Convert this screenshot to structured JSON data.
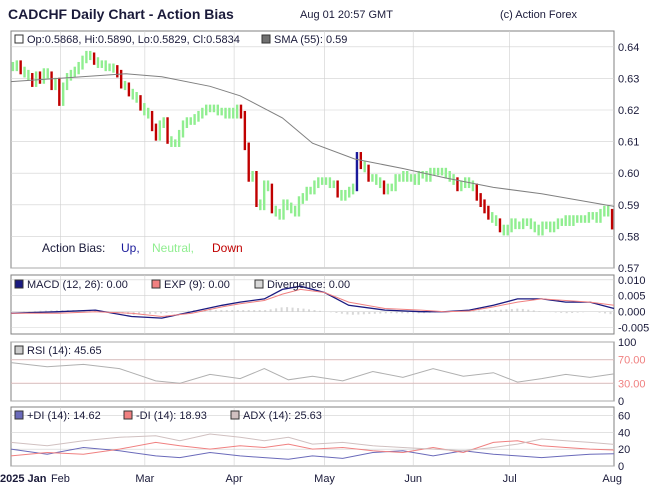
{
  "header": {
    "title": "CADCHF Daily Chart - Action Bias",
    "timestamp": "Aug 01 20:57 GMT",
    "copyright": "(c) Action Forex"
  },
  "colors": {
    "up": "#1a1a9a",
    "neutral": "#90ee90",
    "down": "#c00000",
    "sma": "#808080",
    "macd": "#1a1a80",
    "exp": "#f08080",
    "divergence": "#d8d8d8",
    "rsi": "#b0b0b0",
    "rsi_lines": "#f08080",
    "plus_di": "#6a6aba",
    "minus_di": "#f08080",
    "adx": "#d0c0c0",
    "grid": "#d0d0d0",
    "frame": "#808080"
  },
  "main_panel": {
    "ohlc_legend": "Op:0.5868, Hi:0.5890, Lo:0.5829, Cl:0.5834",
    "sma_legend": "SMA (55): 0.59",
    "bias_label": "Action Bias:",
    "bias_up": "Up,",
    "bias_neutral": "Neutral,",
    "bias_down": "Down"
  },
  "macd_panel": {
    "macd_legend": "MACD (12, 26): 0.00",
    "exp_legend": "EXP (9): 0.00",
    "div_legend": "Divergence: 0.00"
  },
  "rsi_panel": {
    "legend": "RSI (14): 45.65"
  },
  "dmi_panel": {
    "plus_legend": "+DI (14): 14.62",
    "minus_legend": "-DI (14): 18.93",
    "adx_legend": "ADX (14): 25.63"
  },
  "x_axis_labels": [
    "2025 Jan",
    "Feb",
    "Mar",
    "Apr",
    "May",
    "Jun",
    "Jul",
    "Aug"
  ],
  "chart_data": [
    {
      "type": "ohlc",
      "title": "CADCHF Daily Chart - Action Bias",
      "ylim": [
        0.57,
        0.645
      ],
      "y_ticks": [
        "0.64",
        "0.63",
        "0.62",
        "0.61",
        "0.60",
        "0.59",
        "0.58",
        "0.57"
      ],
      "series": [
        {
          "name": "Price",
          "closes": [
            0.6335,
            0.6345,
            0.6325,
            0.6315,
            0.6305,
            0.6285,
            0.631,
            0.6295,
            0.632,
            0.631,
            0.6275,
            0.629,
            0.6225,
            0.6275,
            0.6305,
            0.6315,
            0.6325,
            0.634,
            0.636,
            0.6375,
            0.637,
            0.6355,
            0.6345,
            0.6345,
            0.6335,
            0.6335,
            0.633,
            0.6315,
            0.628,
            0.6275,
            0.6255,
            0.6245,
            0.6235,
            0.621,
            0.6195,
            0.6185,
            0.6145,
            0.6115,
            0.6155,
            0.6165,
            0.6105,
            0.6095,
            0.6095,
            0.6125,
            0.6155,
            0.6165,
            0.6165,
            0.6175,
            0.6185,
            0.6195,
            0.6205,
            0.6205,
            0.6205,
            0.6195,
            0.6195,
            0.6185,
            0.6195,
            0.6185,
            0.6205,
            0.6185,
            0.6085,
            0.5985,
            0.5995,
            0.5905,
            0.5895,
            0.5965,
            0.5955,
            0.5885,
            0.5875,
            0.5865,
            0.5905,
            0.5895,
            0.5885,
            0.5875,
            0.5915,
            0.5925,
            0.5945,
            0.5945,
            0.5965,
            0.5975,
            0.5975,
            0.5975,
            0.5965,
            0.5965,
            0.5935,
            0.5925,
            0.5935,
            0.5945,
            0.5955,
            0.6055,
            0.6025,
            0.6015,
            0.5985,
            0.5985,
            0.5975,
            0.5965,
            0.5945,
            0.5955,
            0.5955,
            0.5985,
            0.5985,
            0.5995,
            0.5985,
            0.5985,
            0.5975,
            0.5995,
            0.5995,
            0.5985,
            0.6005,
            0.6005,
            0.6005,
            0.6005,
            0.5995,
            0.5985,
            0.5975,
            0.5955,
            0.5965,
            0.5975,
            0.5965,
            0.5955,
            0.5925,
            0.5905,
            0.5885,
            0.5865,
            0.5855,
            0.5845,
            0.5825,
            0.5815,
            0.5825,
            0.5845,
            0.5835,
            0.5835,
            0.5845,
            0.5845,
            0.5835,
            0.5825,
            0.5815,
            0.5835,
            0.5835,
            0.5825,
            0.5835,
            0.5845,
            0.5845,
            0.5855,
            0.5845,
            0.5855,
            0.5855,
            0.5855,
            0.5855,
            0.5865,
            0.5865,
            0.5855,
            0.5875,
            0.5885,
            0.5875,
            0.5834
          ]
        },
        {
          "name": "SMA (55)",
          "x_frac": [
            0,
            0.19,
            0.25,
            0.33,
            0.38,
            0.45,
            0.5,
            0.57,
            0.65,
            0.72,
            0.8,
            0.88,
            1
          ],
          "values": [
            0.629,
            0.6315,
            0.6305,
            0.6275,
            0.6245,
            0.6175,
            0.6095,
            0.6045,
            0.6015,
            0.5985,
            0.5955,
            0.5935,
            0.5895
          ]
        }
      ]
    },
    {
      "type": "line",
      "title": "MACD",
      "ylim": [
        -0.007,
        0.0115
      ],
      "y_ticks": [
        "0.010",
        "0.005",
        "0.000",
        "-0.005"
      ],
      "x_frac": [
        0,
        0.08,
        0.14,
        0.2,
        0.25,
        0.3,
        0.35,
        0.38,
        0.42,
        0.45,
        0.48,
        0.52,
        0.56,
        0.62,
        0.68,
        0.72,
        0.76,
        0.8,
        0.84,
        0.88,
        0.92,
        0.96,
        1
      ],
      "series": [
        {
          "name": "MACD (12, 26)",
          "values": [
            -0.0005,
            0,
            0.0005,
            -0.0015,
            -0.002,
            0,
            0.002,
            0.003,
            0.004,
            0.007,
            0.008,
            0.006,
            0.002,
            0.0005,
            0,
            0,
            0.0005,
            0.002,
            0.004,
            0.004,
            0.003,
            0.003,
            0.001
          ]
        },
        {
          "name": "EXP (9)",
          "values": [
            -0.0005,
            -0.0005,
            0,
            -0.0005,
            -0.0015,
            -0.0005,
            0.0015,
            0.0025,
            0.0035,
            0.0055,
            0.007,
            0.006,
            0.003,
            0.001,
            0.0005,
            0,
            0.0002,
            0.0015,
            0.003,
            0.004,
            0.0035,
            0.003,
            0.002
          ]
        },
        {
          "name": "Divergence",
          "values": [
            0,
            0.0005,
            0.0005,
            -0.001,
            -0.0005,
            0.0005,
            0.0005,
            0.0005,
            0.0005,
            0.0015,
            0.001,
            0,
            -0.001,
            -0.0005,
            -0.0005,
            0,
            0.0003,
            0.0005,
            0.001,
            0,
            -0.0005,
            0,
            -0.001
          ]
        }
      ]
    },
    {
      "type": "line",
      "title": "RSI",
      "ylim": [
        0,
        100
      ],
      "y_ticks": [
        "100",
        "70.00",
        "30.00",
        "0"
      ],
      "x_frac": [
        0,
        0.06,
        0.12,
        0.18,
        0.24,
        0.28,
        0.33,
        0.38,
        0.42,
        0.46,
        0.5,
        0.55,
        0.6,
        0.65,
        0.7,
        0.75,
        0.8,
        0.84,
        0.88,
        0.92,
        0.96,
        1
      ],
      "series": [
        {
          "name": "RSI (14)",
          "values": [
            65,
            58,
            62,
            55,
            34,
            30,
            45,
            38,
            55,
            36,
            42,
            34,
            50,
            40,
            55,
            42,
            48,
            32,
            38,
            45,
            40,
            46
          ]
        }
      ]
    },
    {
      "type": "line",
      "title": "DMI",
      "ylim": [
        0,
        70
      ],
      "y_ticks": [
        "60",
        "40",
        "20",
        "0"
      ],
      "x_frac": [
        0,
        0.06,
        0.12,
        0.18,
        0.24,
        0.28,
        0.33,
        0.38,
        0.42,
        0.46,
        0.5,
        0.55,
        0.6,
        0.65,
        0.7,
        0.75,
        0.8,
        0.84,
        0.88,
        0.92,
        0.96,
        1
      ],
      "series": [
        {
          "name": "+DI (14)",
          "values": [
            20,
            14,
            22,
            18,
            12,
            10,
            16,
            12,
            10,
            8,
            12,
            9,
            16,
            18,
            12,
            18,
            14,
            12,
            10,
            12,
            14,
            14.62
          ]
        },
        {
          "name": "-DI (14)",
          "values": [
            12,
            16,
            14,
            20,
            28,
            24,
            20,
            24,
            22,
            26,
            20,
            22,
            18,
            16,
            22,
            16,
            28,
            30,
            24,
            22,
            20,
            18.93
          ]
        },
        {
          "name": "ADX (14)",
          "values": [
            28,
            24,
            30,
            34,
            36,
            30,
            38,
            34,
            30,
            34,
            26,
            28,
            24,
            22,
            20,
            18,
            22,
            26,
            32,
            30,
            28,
            25.63
          ]
        }
      ]
    }
  ]
}
